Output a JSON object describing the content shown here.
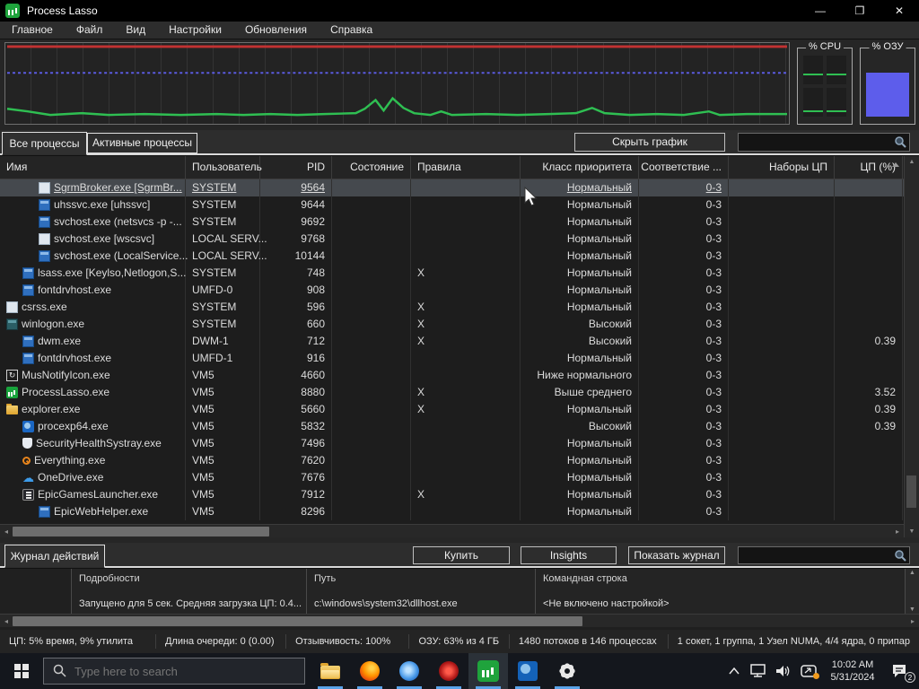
{
  "window": {
    "title": "Process Lasso",
    "minimize": "—",
    "restore": "❐",
    "close": "✕"
  },
  "menu": [
    "Главное",
    "Файл",
    "Вид",
    "Настройки",
    "Обновления",
    "Справка"
  ],
  "graph": {
    "cpu_label": "% CPU",
    "ram_label": "% ОЗУ",
    "colors": {
      "red_line": "#c23232",
      "blue_line": "#5b5be0",
      "green_line": "#2fbf52",
      "ram_fill": "#5d5deb"
    }
  },
  "tabs": {
    "all": "Все процессы",
    "active": "Активные процессы"
  },
  "toolbar": {
    "hide_graph": "Скрыть график"
  },
  "table": {
    "headers": [
      "Имя",
      "Пользователь",
      "PID",
      "Состояние",
      "Правила",
      "Класс приоритета",
      "Соответствие ...",
      "Наборы ЦП",
      "ЦП (%)"
    ],
    "rows": [
      {
        "icon": "window-light",
        "indent": 2,
        "name": "SgrmBroker.exe [SgrmBr...",
        "user": "SYSTEM",
        "pid": "9564",
        "state": "",
        "rules": "",
        "priority": "Нормальный",
        "affinity": "0-3",
        "cpusets": "",
        "cpu": "",
        "selected": true
      },
      {
        "icon": "window-blue",
        "indent": 2,
        "name": "uhssvc.exe [uhssvc]",
        "user": "SYSTEM",
        "pid": "9644",
        "state": "",
        "rules": "",
        "priority": "Нормальный",
        "affinity": "0-3",
        "cpusets": "",
        "cpu": ""
      },
      {
        "icon": "window-blue",
        "indent": 2,
        "name": "svchost.exe (netsvcs -p -...",
        "user": "SYSTEM",
        "pid": "9692",
        "state": "",
        "rules": "",
        "priority": "Нормальный",
        "affinity": "0-3",
        "cpusets": "",
        "cpu": ""
      },
      {
        "icon": "window-light",
        "indent": 2,
        "name": "svchost.exe [wscsvc]",
        "user": "LOCAL SERV...",
        "pid": "9768",
        "state": "",
        "rules": "",
        "priority": "Нормальный",
        "affinity": "0-3",
        "cpusets": "",
        "cpu": ""
      },
      {
        "icon": "window-blue",
        "indent": 2,
        "name": "svchost.exe (LocalService...",
        "user": "LOCAL SERV...",
        "pid": "10144",
        "state": "",
        "rules": "",
        "priority": "Нормальный",
        "affinity": "0-3",
        "cpusets": "",
        "cpu": ""
      },
      {
        "icon": "window-blue",
        "indent": 1,
        "name": "lsass.exe [Keylso,Netlogon,S...",
        "user": "SYSTEM",
        "pid": "748",
        "state": "",
        "rules": "X",
        "priority": "Нормальный",
        "affinity": "0-3",
        "cpusets": "",
        "cpu": ""
      },
      {
        "icon": "window-blue",
        "indent": 1,
        "name": "fontdrvhost.exe",
        "user": "UMFD-0",
        "pid": "908",
        "state": "",
        "rules": "",
        "priority": "Нормальный",
        "affinity": "0-3",
        "cpusets": "",
        "cpu": ""
      },
      {
        "icon": "window-light",
        "indent": 0,
        "name": "csrss.exe",
        "user": "SYSTEM",
        "pid": "596",
        "state": "",
        "rules": "X",
        "priority": "Нормальный",
        "affinity": "0-3",
        "cpusets": "",
        "cpu": ""
      },
      {
        "icon": "window-teal",
        "indent": 0,
        "name": "winlogon.exe",
        "user": "SYSTEM",
        "pid": "660",
        "state": "",
        "rules": "X",
        "priority": "Высокий",
        "affinity": "0-3",
        "cpusets": "",
        "cpu": ""
      },
      {
        "icon": "window-blue",
        "indent": 1,
        "name": "dwm.exe",
        "user": "DWM-1",
        "pid": "712",
        "state": "",
        "rules": "X",
        "priority": "Высокий",
        "affinity": "0-3",
        "cpusets": "",
        "cpu": "0.39"
      },
      {
        "icon": "window-blue",
        "indent": 1,
        "name": "fontdrvhost.exe",
        "user": "UMFD-1",
        "pid": "916",
        "state": "",
        "rules": "",
        "priority": "Нормальный",
        "affinity": "0-3",
        "cpusets": "",
        "cpu": ""
      },
      {
        "icon": "sync",
        "indent": 0,
        "name": "MusNotifyIcon.exe",
        "user": "VM5",
        "pid": "4660",
        "state": "",
        "rules": "",
        "priority": "Ниже нормального",
        "affinity": "0-3",
        "cpusets": "",
        "cpu": ""
      },
      {
        "icon": "lasso",
        "indent": 0,
        "name": "ProcessLasso.exe",
        "user": "VM5",
        "pid": "8880",
        "state": "",
        "rules": "X",
        "priority": "Выше среднего",
        "affinity": "0-3",
        "cpusets": "",
        "cpu": "3.52"
      },
      {
        "icon": "folder",
        "indent": 0,
        "name": "explorer.exe",
        "user": "VM5",
        "pid": "5660",
        "state": "",
        "rules": "X",
        "priority": "Нормальный",
        "affinity": "0-3",
        "cpusets": "",
        "cpu": "0.39"
      },
      {
        "icon": "procexp",
        "indent": 1,
        "name": "procexp64.exe",
        "user": "VM5",
        "pid": "5832",
        "state": "",
        "rules": "",
        "priority": "Высокий",
        "affinity": "0-3",
        "cpusets": "",
        "cpu": "0.39"
      },
      {
        "icon": "shield",
        "indent": 1,
        "name": "SecurityHealthSystray.exe",
        "user": "VM5",
        "pid": "7496",
        "state": "",
        "rules": "",
        "priority": "Нормальный",
        "affinity": "0-3",
        "cpusets": "",
        "cpu": ""
      },
      {
        "icon": "searcho",
        "indent": 1,
        "name": "Everything.exe",
        "user": "VM5",
        "pid": "7620",
        "state": "",
        "rules": "",
        "priority": "Нормальный",
        "affinity": "0-3",
        "cpusets": "",
        "cpu": ""
      },
      {
        "icon": "cloud",
        "indent": 1,
        "name": "OneDrive.exe",
        "user": "VM5",
        "pid": "7676",
        "state": "",
        "rules": "",
        "priority": "Нормальный",
        "affinity": "0-3",
        "cpusets": "",
        "cpu": ""
      },
      {
        "icon": "epic",
        "indent": 1,
        "name": "EpicGamesLauncher.exe",
        "user": "VM5",
        "pid": "7912",
        "state": "",
        "rules": "X",
        "priority": "Нормальный",
        "affinity": "0-3",
        "cpusets": "",
        "cpu": ""
      },
      {
        "icon": "window-blue",
        "indent": 2,
        "name": "EpicWebHelper.exe",
        "user": "VM5",
        "pid": "8296",
        "state": "",
        "rules": "",
        "priority": "Нормальный",
        "affinity": "0-3",
        "cpusets": "",
        "cpu": ""
      }
    ]
  },
  "bottom": {
    "tab": "Журнал действий",
    "buy": "Купить",
    "insights": "Insights",
    "show_log": "Показать журнал"
  },
  "details": {
    "cols": [
      {
        "header": "Подробности",
        "value": "Запущено для 5 сек. Средняя загрузка ЦП: 0.4..."
      },
      {
        "header": "Путь",
        "value": "c:\\windows\\system32\\dllhost.exe"
      },
      {
        "header": "Командная строка",
        "value": "<Не включено настройкой>"
      }
    ]
  },
  "statusbar": [
    "ЦП: 5% время, 9% утилита",
    "Длина очереди: 0 (0.00)",
    "Отзывчивость: 100%",
    "ОЗУ: 63% из 4 ГБ",
    "1480 потоков в 146 процессах",
    "1 сокет, 1 группа, 1 Узел NUMA, 4/4 ядра, 0 припар"
  ],
  "taskbar": {
    "search_placeholder": "Type here to search",
    "time": "10:02 AM",
    "date": "5/31/2024",
    "notif_count": "2"
  }
}
